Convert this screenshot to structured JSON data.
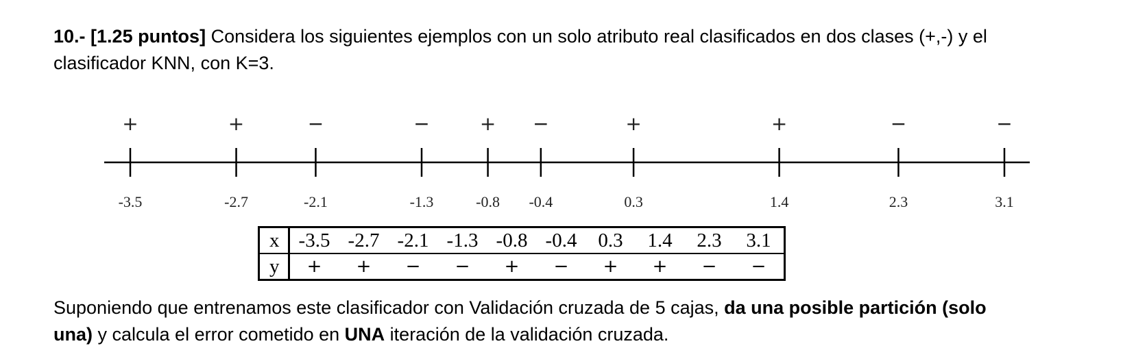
{
  "question": {
    "number": "10.-",
    "points": "[1.25 puntos]",
    "intro_line1": " Considera los siguientes ejemplos con un solo atributo real clasificados en dos clases (+,-) y el",
    "intro_line2": "clasificador KNN, con K=3."
  },
  "number_line": {
    "points": [
      {
        "x": -3.5,
        "label": "-3.5",
        "class": "+"
      },
      {
        "x": -2.7,
        "label": "-2.7",
        "class": "+"
      },
      {
        "x": -2.1,
        "label": "-2.1",
        "class": "−"
      },
      {
        "x": -1.3,
        "label": "-1.3",
        "class": "−"
      },
      {
        "x": -0.8,
        "label": "-0.8",
        "class": "+"
      },
      {
        "x": -0.4,
        "label": "-0.4",
        "class": "−"
      },
      {
        "x": 0.3,
        "label": "0.3",
        "class": "+"
      },
      {
        "x": 1.4,
        "label": "1.4",
        "class": "+"
      },
      {
        "x": 2.3,
        "label": "2.3",
        "class": "−"
      },
      {
        "x": 3.1,
        "label": "3.1",
        "class": "−"
      }
    ]
  },
  "table": {
    "x_header": "x",
    "y_header": "y",
    "x_values": [
      "-3.5",
      "-2.7",
      "-2.1",
      "-1.3",
      "-0.8",
      "-0.4",
      "0.3",
      "1.4",
      "2.3",
      "3.1"
    ],
    "y_values": [
      "+",
      "+",
      "−",
      "−",
      "+",
      "−",
      "+",
      "+",
      "−",
      "−"
    ]
  },
  "task": {
    "part1": "Suponiendo que entrenamos este clasificador con Validación cruzada de 5 cajas, ",
    "part2_bold": "da una posible partición (solo",
    "part3_bold": "una)",
    "part4": " y calcula el error cometido en ",
    "part5_bold": "UNA",
    "part6": " iteración de la validación cruzada."
  }
}
